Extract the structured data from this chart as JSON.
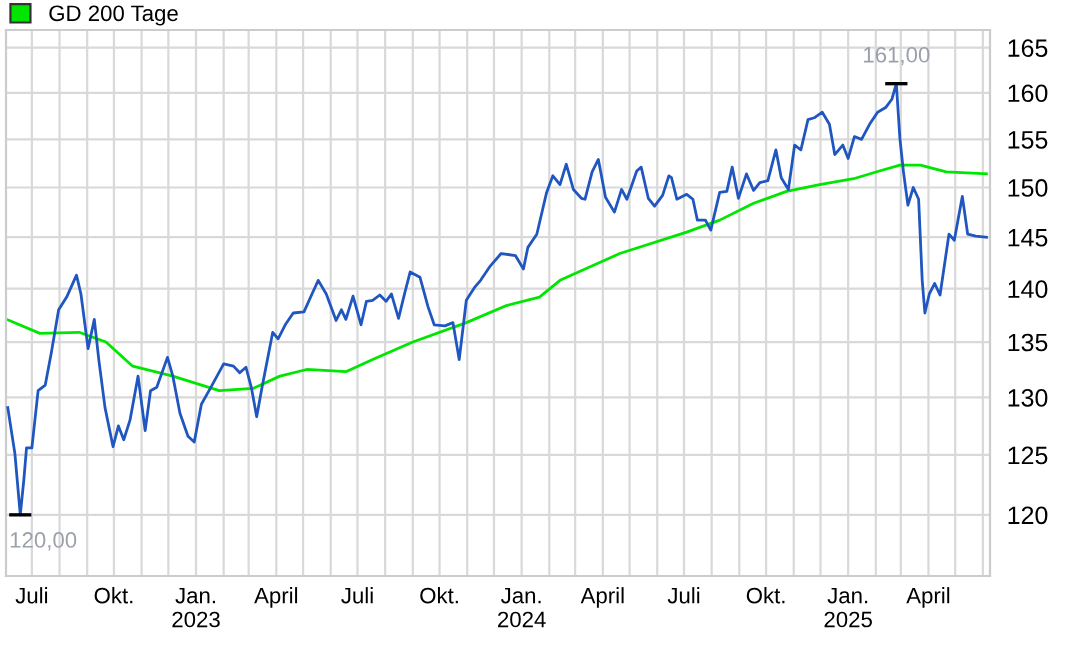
{
  "chart_data": {
    "type": "line",
    "log": "y",
    "series": [
      {
        "color": "#1f56c0",
        "x": [
          "2022-06-04",
          "2022-06-12",
          "2022-06-18",
          "2022-06-22",
          "2022-06-25",
          "2022-07-01",
          "2022-07-08",
          "2022-07-16",
          "2022-07-23",
          "2022-07-31",
          "2022-08-09",
          "2022-08-20",
          "2022-08-25",
          "2022-09-02",
          "2022-09-09",
          "2022-09-14",
          "2022-09-21",
          "2022-09-30",
          "2022-10-06",
          "2022-10-12",
          "2022-10-19",
          "2022-10-28",
          "2022-11-05",
          "2022-11-11",
          "2022-11-18",
          "2022-11-30",
          "2022-12-06",
          "2022-12-14",
          "2022-12-23",
          "2022-12-30",
          "2023-01-07",
          "2023-01-17",
          "2023-02-01",
          "2023-02-12",
          "2023-02-19",
          "2023-02-26",
          "2023-03-04",
          "2023-03-10",
          "2023-03-16",
          "2023-03-28",
          "2023-04-03",
          "2023-04-11",
          "2023-04-20",
          "2023-05-02",
          "2023-05-11",
          "2023-05-18",
          "2023-05-27",
          "2023-06-07",
          "2023-06-13",
          "2023-06-18",
          "2023-06-26",
          "2023-07-05",
          "2023-07-11",
          "2023-07-18",
          "2023-07-26",
          "2023-08-02",
          "2023-08-08",
          "2023-08-16",
          "2023-08-23",
          "2023-08-29",
          "2023-09-09",
          "2023-09-18",
          "2023-09-25",
          "2023-10-07",
          "2023-10-16",
          "2023-10-23",
          "2023-10-31",
          "2023-11-09",
          "2023-11-16",
          "2023-11-27",
          "2023-12-09",
          "2023-12-25",
          "2024-01-03",
          "2024-01-08",
          "2024-01-18",
          "2024-01-29",
          "2024-02-05",
          "2024-02-13",
          "2024-02-20",
          "2024-02-28",
          "2024-03-08",
          "2024-03-12",
          "2024-03-20",
          "2024-03-27",
          "2024-04-04",
          "2024-04-14",
          "2024-04-22",
          "2024-04-28",
          "2024-05-09",
          "2024-05-14",
          "2024-05-22",
          "2024-05-29",
          "2024-06-07",
          "2024-06-14",
          "2024-06-17",
          "2024-06-23",
          "2024-07-04",
          "2024-07-11",
          "2024-07-16",
          "2024-07-25",
          "2024-07-31",
          "2024-08-10",
          "2024-08-18",
          "2024-08-24",
          "2024-08-31",
          "2024-09-09",
          "2024-09-17",
          "2024-09-24",
          "2024-10-03",
          "2024-10-12",
          "2024-10-18",
          "2024-10-26",
          "2024-11-02",
          "2024-11-09",
          "2024-11-17",
          "2024-11-24",
          "2024-12-03",
          "2024-12-11",
          "2024-12-17",
          "2024-12-26",
          "2025-01-01",
          "2025-01-08",
          "2025-01-16",
          "2025-01-25",
          "2025-02-03",
          "2025-02-12",
          "2025-02-19",
          "2025-02-24",
          "2025-02-28",
          "2025-03-04",
          "2025-03-09",
          "2025-03-15",
          "2025-03-21",
          "2025-03-25",
          "2025-03-28",
          "2025-04-02",
          "2025-04-08",
          "2025-04-14",
          "2025-04-24",
          "2025-04-30",
          "2025-05-09",
          "2025-05-15",
          "2025-05-24",
          "2025-06-05"
        ],
        "values": [
          129.1,
          125.1,
          120.0,
          122.9,
          125.6,
          125.6,
          130.6,
          131.1,
          134.1,
          138.0,
          139.2,
          141.3,
          139.5,
          134.4,
          137.1,
          133.4,
          129.1,
          125.7,
          127.5,
          126.3,
          128.0,
          131.9,
          127.1,
          130.6,
          130.9,
          133.6,
          131.9,
          128.6,
          126.6,
          126.1,
          129.4,
          130.8,
          133.0,
          132.8,
          132.2,
          132.7,
          130.9,
          128.3,
          130.9,
          135.9,
          135.3,
          136.6,
          137.7,
          137.8,
          139.5,
          140.8,
          139.5,
          137.0,
          138.0,
          137.1,
          139.3,
          136.6,
          138.8,
          138.9,
          139.4,
          138.8,
          139.5,
          137.2,
          139.6,
          141.6,
          141.1,
          138.3,
          136.6,
          136.5,
          136.8,
          133.4,
          138.9,
          140.1,
          140.8,
          142.2,
          143.4,
          143.2,
          141.9,
          144.0,
          145.3,
          149.5,
          151.2,
          150.3,
          152.4,
          149.8,
          148.9,
          148.8,
          151.6,
          152.9,
          149.0,
          147.5,
          149.8,
          148.8,
          151.7,
          152.1,
          148.9,
          148.1,
          149.2,
          151.2,
          151.0,
          148.8,
          149.3,
          148.8,
          146.7,
          146.7,
          145.7,
          149.5,
          149.6,
          152.1,
          148.9,
          151.4,
          149.7,
          150.5,
          150.7,
          153.9,
          151.0,
          149.8,
          154.4,
          153.9,
          157.1,
          157.3,
          157.9,
          156.6,
          153.4,
          154.4,
          153.0,
          155.3,
          155.0,
          156.6,
          157.9,
          158.4,
          159.3,
          161.0,
          155.1,
          151.6,
          148.2,
          150.0,
          148.8,
          140.8,
          137.7,
          139.5,
          140.5,
          139.4,
          145.3,
          144.7,
          149.1,
          145.3,
          145.1,
          145.0
        ]
      },
      {
        "name": "GD 200 Tage",
        "color": "#00e600",
        "x": [
          "2022-06-03",
          "2022-07-10",
          "2022-08-23",
          "2022-09-22",
          "2022-10-22",
          "2022-12-06",
          "2023-01-27",
          "2023-03-06",
          "2023-04-05",
          "2023-05-05",
          "2023-06-18",
          "2023-07-18",
          "2023-09-01",
          "2023-10-31",
          "2023-12-15",
          "2024-01-21",
          "2024-02-13",
          "2024-04-20",
          "2024-07-04",
          "2024-08-10",
          "2024-09-17",
          "2024-10-24",
          "2024-11-30",
          "2025-01-07",
          "2025-02-05",
          "2025-02-28",
          "2025-03-23",
          "2025-04-21",
          "2025-06-05"
        ],
        "values": [
          137.1,
          135.8,
          135.9,
          135.0,
          132.8,
          131.9,
          130.6,
          130.8,
          131.9,
          132.5,
          132.3,
          133.4,
          135.0,
          136.8,
          138.4,
          139.2,
          140.8,
          143.4,
          145.5,
          146.7,
          148.4,
          149.6,
          150.3,
          150.9,
          151.7,
          152.3,
          152.3,
          151.6,
          151.4
        ]
      }
    ],
    "xlim": [
      "2022-06-02",
      "2025-06-09"
    ],
    "ylim": [
      115.1,
      167.0
    ],
    "yticks": [
      120,
      125,
      130,
      135,
      140,
      145,
      150,
      155,
      160,
      165
    ],
    "xticks": [
      {
        "value": "2022-07-01",
        "label": "Juli"
      },
      {
        "value": "2022-08-01",
        "label": null
      },
      {
        "value": "2022-09-01",
        "label": null
      },
      {
        "value": "2022-10-01",
        "label": "Okt."
      },
      {
        "value": "2022-11-01",
        "label": null
      },
      {
        "value": "2022-12-01",
        "label": null
      },
      {
        "value": "2023-01-01",
        "label": "Jan.\n2023"
      },
      {
        "value": "2023-02-01",
        "label": null
      },
      {
        "value": "2023-03-01",
        "label": null
      },
      {
        "value": "2023-04-01",
        "label": "April"
      },
      {
        "value": "2023-05-01",
        "label": null
      },
      {
        "value": "2023-06-01",
        "label": null
      },
      {
        "value": "2023-07-01",
        "label": "Juli"
      },
      {
        "value": "2023-08-01",
        "label": null
      },
      {
        "value": "2023-09-01",
        "label": null
      },
      {
        "value": "2023-10-01",
        "label": "Okt."
      },
      {
        "value": "2023-11-01",
        "label": null
      },
      {
        "value": "2023-12-01",
        "label": null
      },
      {
        "value": "2024-01-01",
        "label": "Jan.\n2024"
      },
      {
        "value": "2024-02-01",
        "label": null
      },
      {
        "value": "2024-03-01",
        "label": null
      },
      {
        "value": "2024-04-01",
        "label": "April"
      },
      {
        "value": "2024-05-01",
        "label": null
      },
      {
        "value": "2024-06-01",
        "label": null
      },
      {
        "value": "2024-07-01",
        "label": "Juli"
      },
      {
        "value": "2024-08-01",
        "label": null
      },
      {
        "value": "2024-09-01",
        "label": null
      },
      {
        "value": "2024-10-01",
        "label": "Okt."
      },
      {
        "value": "2024-11-01",
        "label": null
      },
      {
        "value": "2024-12-01",
        "label": null
      },
      {
        "value": "2025-01-01",
        "label": "Jan.\n2025"
      },
      {
        "value": "2025-02-01",
        "label": null
      },
      {
        "value": "2025-03-01",
        "label": null
      },
      {
        "value": "2025-04-01",
        "label": "April"
      },
      {
        "value": "2025-05-01",
        "label": null
      },
      {
        "value": "2025-06-01",
        "label": null
      }
    ],
    "annotations": [
      {
        "text": "161,00",
        "x": "2025-02-24",
        "y": 161.0
      },
      {
        "text": "120,00",
        "x": "2022-06-18",
        "y": 120.0
      }
    ],
    "grid": true,
    "legend": "top left",
    "marker": "none",
    "line_style": "solid"
  }
}
